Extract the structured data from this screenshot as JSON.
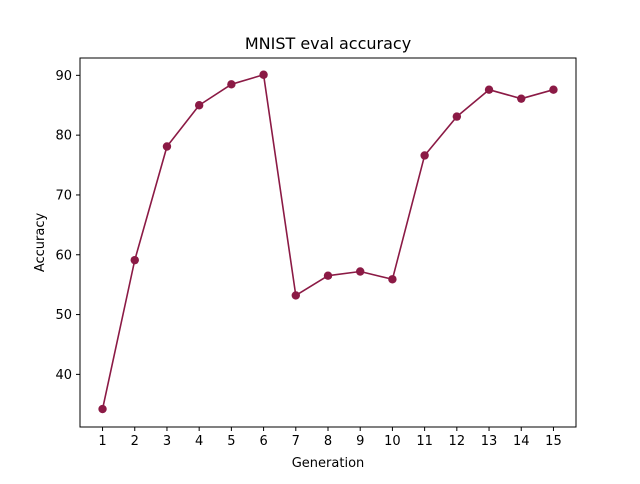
{
  "chart_data": {
    "type": "line",
    "title": "MNIST eval accuracy",
    "xlabel": "Generation",
    "ylabel": "Accuracy",
    "x": [
      1,
      2,
      3,
      4,
      5,
      6,
      7,
      8,
      9,
      10,
      11,
      12,
      13,
      14,
      15
    ],
    "series": [
      {
        "values": [
          34.2,
          59.1,
          78.1,
          85.0,
          88.5,
          90.1,
          53.2,
          56.5,
          57.2,
          55.9,
          76.6,
          83.1,
          87.6,
          86.1,
          87.6
        ],
        "color": "#8b1a45",
        "marker": "circle"
      }
    ],
    "xticks": [
      1,
      2,
      3,
      4,
      5,
      6,
      7,
      8,
      9,
      10,
      11,
      12,
      13,
      14,
      15
    ],
    "yticks": [
      40,
      50,
      60,
      70,
      80,
      90
    ],
    "xlim": [
      0.3,
      15.7
    ],
    "ylim": [
      31.2,
      92.9
    ],
    "grid": false
  }
}
